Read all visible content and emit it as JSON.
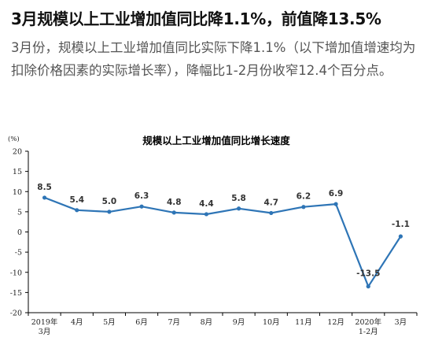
{
  "article": {
    "headline": "3月规模以上工业增加值同比降1.1%，前值降13.5%",
    "body": "3月份，规模以上工业增加值同比实际下降1.1%（以下增加值增速均为扣除价格因素的实际增长率），降幅比1-2月份收窄12.4个百分点。"
  },
  "chart_data": {
    "type": "line",
    "title": "规模以上工业增加值同比增长速度",
    "yunit": "(%)",
    "ylim": [
      -20,
      20
    ],
    "yticks": [
      20,
      15,
      10,
      5,
      0,
      -5,
      -10,
      -15,
      -20
    ],
    "categories": [
      [
        "2019年",
        "3月"
      ],
      [
        "4月"
      ],
      [
        "5月"
      ],
      [
        "6月"
      ],
      [
        "7月"
      ],
      [
        "8月"
      ],
      [
        "9月"
      ],
      [
        "10月"
      ],
      [
        "11月"
      ],
      [
        "12月"
      ],
      [
        "2020年",
        "1-2月"
      ],
      [
        "3月"
      ]
    ],
    "values": [
      8.5,
      5.4,
      5.0,
      6.3,
      4.8,
      4.4,
      5.8,
      4.7,
      6.2,
      6.9,
      -13.5,
      -1.1
    ],
    "labels": [
      "8.5",
      "5.4",
      "5.0",
      "6.3",
      "4.8",
      "4.4",
      "5.8",
      "4.7",
      "6.2",
      "6.9",
      "-13.5",
      "-1.1"
    ],
    "grid": false,
    "line_color": "#2e75b6"
  }
}
